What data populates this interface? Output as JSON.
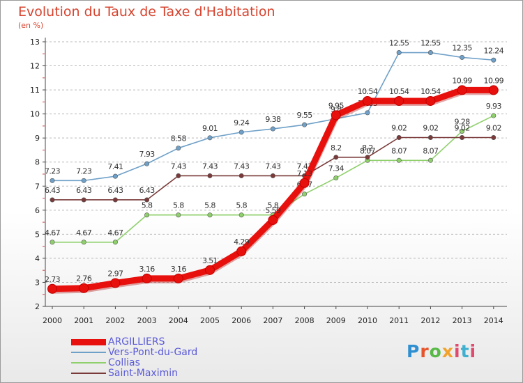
{
  "title": "Evolution du Taux de Taxe d'Habitation",
  "unit_label": "(en %)",
  "brand": [
    "P",
    "r",
    "o",
    "x",
    "i",
    "t",
    "i"
  ],
  "chart_data": {
    "type": "line",
    "x": [
      "2000",
      "2001",
      "2002",
      "2003",
      "2004",
      "2005",
      "2006",
      "2007",
      "2008",
      "2009",
      "2010",
      "2011",
      "2012",
      "2013",
      "2014"
    ],
    "ylim": [
      2,
      13
    ],
    "yticks": [
      "2",
      "3",
      "4",
      "5",
      "6",
      "7",
      "8",
      "9",
      "10",
      "11",
      "12",
      "13"
    ],
    "grid": "horizontal dashed",
    "legend_position": "bottom-left",
    "series": [
      {
        "name": "Vers-Pont-du-Gard",
        "color": "#6fa0c8",
        "values": [
          7.23,
          7.23,
          7.41,
          7.93,
          8.58,
          9.01,
          9.24,
          9.38,
          9.55,
          9.8,
          10.05,
          12.55,
          12.55,
          12.35,
          12.24
        ],
        "labels": [
          "7.23",
          "7.23",
          "7.41",
          "7.93",
          "8.58",
          "9.01",
          "9.24",
          "9.38",
          "9.55",
          "9.8",
          "10.05",
          "12.55",
          "12.55",
          "12.35",
          "12.24"
        ]
      },
      {
        "name": "Collias",
        "color": "#8fd06c",
        "values": [
          4.67,
          4.67,
          4.67,
          5.8,
          5.8,
          5.8,
          5.8,
          5.8,
          6.67,
          7.34,
          8.07,
          8.07,
          8.07,
          9.28,
          9.93
        ],
        "labels": [
          "4.67",
          "4.67",
          "4.67",
          "5.8",
          "5.8",
          "5.8",
          "5.8",
          "5.8",
          "6.67",
          "7.34",
          "8.07",
          "8.07",
          "8.07",
          "9.28",
          "9.93"
        ]
      },
      {
        "name": "Saint-Maximin",
        "color": "#7a3a3a",
        "values": [
          6.43,
          6.43,
          6.43,
          6.43,
          7.43,
          7.43,
          7.43,
          7.43,
          7.43,
          8.2,
          8.2,
          9.02,
          9.02,
          9.02,
          9.02
        ],
        "labels": [
          "6.43",
          "6.43",
          "6.43",
          "6.43",
          "7.43",
          "7.43",
          "7.43",
          "7.43",
          "7.43",
          "8.2",
          "8.2",
          "9.02",
          "9.02",
          "9.02",
          "9.02"
        ]
      },
      {
        "name": "ARGILLIERS",
        "color": "#e8100c",
        "values": [
          2.73,
          2.76,
          2.97,
          3.16,
          3.16,
          3.51,
          4.29,
          5.59,
          7.13,
          9.95,
          10.54,
          10.54,
          10.54,
          10.99,
          10.99
        ],
        "labels": [
          "2.73",
          "2.76",
          "2.97",
          "3.16",
          "3.16",
          "3.51",
          "4.29",
          "5.59",
          "7.13",
          "9.95",
          "10.54",
          "10.54",
          "10.54",
          "10.99",
          "10.99"
        ]
      }
    ]
  }
}
